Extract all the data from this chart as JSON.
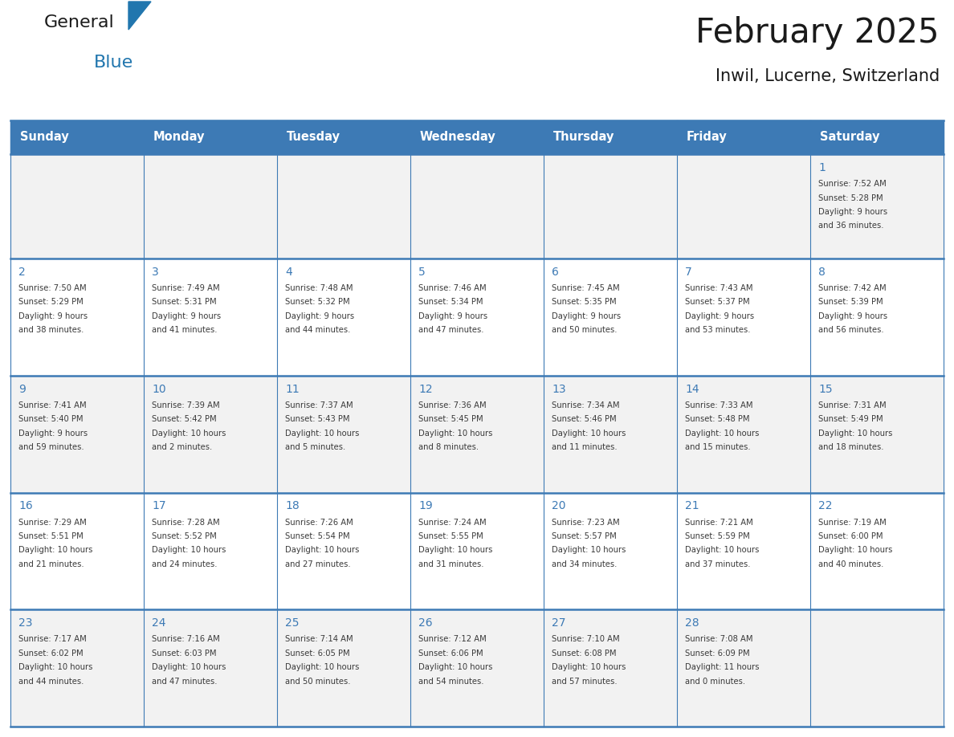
{
  "title": "February 2025",
  "subtitle": "Inwil, Lucerne, Switzerland",
  "header_color": "#3d7ab5",
  "header_text_color": "#FFFFFF",
  "cell_bg_even": "#f2f2f2",
  "cell_bg_odd": "#ffffff",
  "border_color": "#3d7ab5",
  "day_headers": [
    "Sunday",
    "Monday",
    "Tuesday",
    "Wednesday",
    "Thursday",
    "Friday",
    "Saturday"
  ],
  "days": [
    {
      "day": 1,
      "col": 6,
      "row": 0,
      "sunrise": "7:52 AM",
      "sunset": "5:28 PM",
      "daylight": "9 hours and 36 minutes"
    },
    {
      "day": 2,
      "col": 0,
      "row": 1,
      "sunrise": "7:50 AM",
      "sunset": "5:29 PM",
      "daylight": "9 hours and 38 minutes"
    },
    {
      "day": 3,
      "col": 1,
      "row": 1,
      "sunrise": "7:49 AM",
      "sunset": "5:31 PM",
      "daylight": "9 hours and 41 minutes"
    },
    {
      "day": 4,
      "col": 2,
      "row": 1,
      "sunrise": "7:48 AM",
      "sunset": "5:32 PM",
      "daylight": "9 hours and 44 minutes"
    },
    {
      "day": 5,
      "col": 3,
      "row": 1,
      "sunrise": "7:46 AM",
      "sunset": "5:34 PM",
      "daylight": "9 hours and 47 minutes"
    },
    {
      "day": 6,
      "col": 4,
      "row": 1,
      "sunrise": "7:45 AM",
      "sunset": "5:35 PM",
      "daylight": "9 hours and 50 minutes"
    },
    {
      "day": 7,
      "col": 5,
      "row": 1,
      "sunrise": "7:43 AM",
      "sunset": "5:37 PM",
      "daylight": "9 hours and 53 minutes"
    },
    {
      "day": 8,
      "col": 6,
      "row": 1,
      "sunrise": "7:42 AM",
      "sunset": "5:39 PM",
      "daylight": "9 hours and 56 minutes"
    },
    {
      "day": 9,
      "col": 0,
      "row": 2,
      "sunrise": "7:41 AM",
      "sunset": "5:40 PM",
      "daylight": "9 hours and 59 minutes"
    },
    {
      "day": 10,
      "col": 1,
      "row": 2,
      "sunrise": "7:39 AM",
      "sunset": "5:42 PM",
      "daylight": "10 hours and 2 minutes"
    },
    {
      "day": 11,
      "col": 2,
      "row": 2,
      "sunrise": "7:37 AM",
      "sunset": "5:43 PM",
      "daylight": "10 hours and 5 minutes"
    },
    {
      "day": 12,
      "col": 3,
      "row": 2,
      "sunrise": "7:36 AM",
      "sunset": "5:45 PM",
      "daylight": "10 hours and 8 minutes"
    },
    {
      "day": 13,
      "col": 4,
      "row": 2,
      "sunrise": "7:34 AM",
      "sunset": "5:46 PM",
      "daylight": "10 hours and 11 minutes"
    },
    {
      "day": 14,
      "col": 5,
      "row": 2,
      "sunrise": "7:33 AM",
      "sunset": "5:48 PM",
      "daylight": "10 hours and 15 minutes"
    },
    {
      "day": 15,
      "col": 6,
      "row": 2,
      "sunrise": "7:31 AM",
      "sunset": "5:49 PM",
      "daylight": "10 hours and 18 minutes"
    },
    {
      "day": 16,
      "col": 0,
      "row": 3,
      "sunrise": "7:29 AM",
      "sunset": "5:51 PM",
      "daylight": "10 hours and 21 minutes"
    },
    {
      "day": 17,
      "col": 1,
      "row": 3,
      "sunrise": "7:28 AM",
      "sunset": "5:52 PM",
      "daylight": "10 hours and 24 minutes"
    },
    {
      "day": 18,
      "col": 2,
      "row": 3,
      "sunrise": "7:26 AM",
      "sunset": "5:54 PM",
      "daylight": "10 hours and 27 minutes"
    },
    {
      "day": 19,
      "col": 3,
      "row": 3,
      "sunrise": "7:24 AM",
      "sunset": "5:55 PM",
      "daylight": "10 hours and 31 minutes"
    },
    {
      "day": 20,
      "col": 4,
      "row": 3,
      "sunrise": "7:23 AM",
      "sunset": "5:57 PM",
      "daylight": "10 hours and 34 minutes"
    },
    {
      "day": 21,
      "col": 5,
      "row": 3,
      "sunrise": "7:21 AM",
      "sunset": "5:59 PM",
      "daylight": "10 hours and 37 minutes"
    },
    {
      "day": 22,
      "col": 6,
      "row": 3,
      "sunrise": "7:19 AM",
      "sunset": "6:00 PM",
      "daylight": "10 hours and 40 minutes"
    },
    {
      "day": 23,
      "col": 0,
      "row": 4,
      "sunrise": "7:17 AM",
      "sunset": "6:02 PM",
      "daylight": "10 hours and 44 minutes"
    },
    {
      "day": 24,
      "col": 1,
      "row": 4,
      "sunrise": "7:16 AM",
      "sunset": "6:03 PM",
      "daylight": "10 hours and 47 minutes"
    },
    {
      "day": 25,
      "col": 2,
      "row": 4,
      "sunrise": "7:14 AM",
      "sunset": "6:05 PM",
      "daylight": "10 hours and 50 minutes"
    },
    {
      "day": 26,
      "col": 3,
      "row": 4,
      "sunrise": "7:12 AM",
      "sunset": "6:06 PM",
      "daylight": "10 hours and 54 minutes"
    },
    {
      "day": 27,
      "col": 4,
      "row": 4,
      "sunrise": "7:10 AM",
      "sunset": "6:08 PM",
      "daylight": "10 hours and 57 minutes"
    },
    {
      "day": 28,
      "col": 5,
      "row": 4,
      "sunrise": "7:08 AM",
      "sunset": "6:09 PM",
      "daylight": "11 hours and 0 minutes"
    }
  ],
  "n_rows": 5,
  "n_cols": 7,
  "logo_general_color": "#1a1a1a",
  "logo_blue_color": "#2176AE",
  "logo_triangle_color": "#2176AE",
  "title_color": "#1a1a1a",
  "subtitle_color": "#1a1a1a",
  "text_color": "#3a3a3a",
  "daynum_color": "#3d7ab5"
}
